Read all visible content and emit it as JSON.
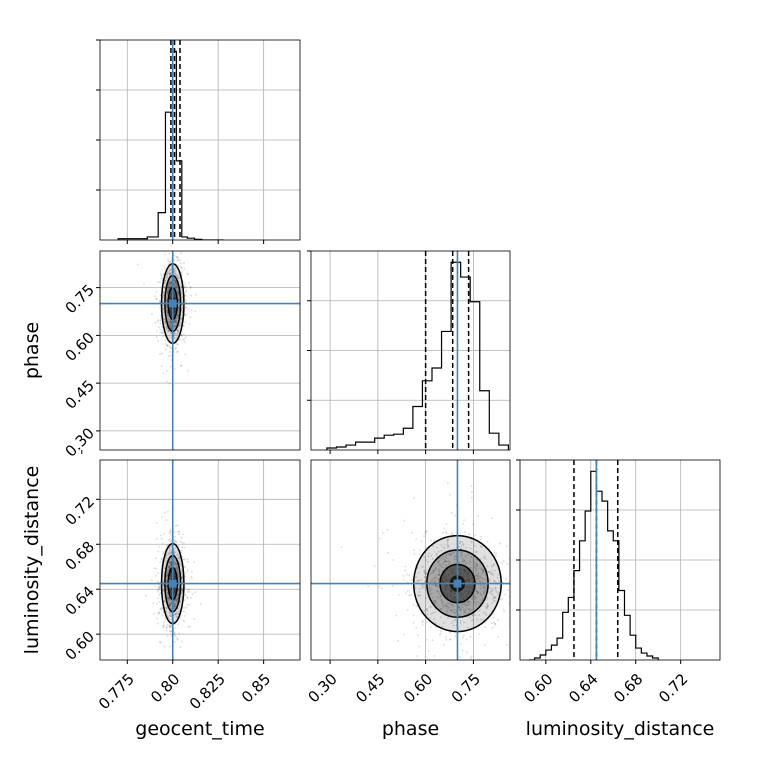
{
  "chart_data": [
    {
      "panel": "geocent_time 1D",
      "type": "histogram",
      "grid": true,
      "xlim": [
        0.76,
        0.87
      ],
      "xticks": [
        0.775,
        0.8,
        0.825,
        0.85
      ],
      "truth": 0.8,
      "quantiles": [
        0.799,
        0.801,
        0.804
      ],
      "bin_edges": [
        0.77,
        0.786,
        0.792,
        0.796,
        0.8,
        0.802,
        0.805,
        0.808,
        0.812,
        0.816,
        0.822,
        0.828
      ],
      "counts": [
        2,
        5,
        45,
        210,
        310,
        130,
        5,
        3,
        1,
        0,
        0
      ]
    },
    {
      "panel": "geocent_time vs phase",
      "type": "scatter",
      "grid": true,
      "xlim": [
        0.76,
        0.87
      ],
      "ylim": [
        0.24,
        0.865
      ],
      "yticks": [
        0.3,
        0.45,
        0.6,
        0.75
      ],
      "ylabel": "phase",
      "truth": [
        0.8,
        0.7
      ],
      "density_center": [
        0.8,
        0.7
      ]
    },
    {
      "panel": "phase 1D",
      "type": "histogram",
      "grid": true,
      "xlim": [
        0.24,
        0.865
      ],
      "truth": 0.7,
      "quantiles": [
        0.6,
        0.685,
        0.735
      ],
      "bin_edges": [
        0.29,
        0.32,
        0.35,
        0.38,
        0.41,
        0.44,
        0.47,
        0.5,
        0.53,
        0.56,
        0.59,
        0.62,
        0.65,
        0.68,
        0.71,
        0.74,
        0.77,
        0.8,
        0.83,
        0.86
      ],
      "counts": [
        2,
        3,
        5,
        8,
        8,
        12,
        15,
        16,
        22,
        44,
        70,
        83,
        120,
        190,
        175,
        150,
        60,
        17,
        5
      ]
    },
    {
      "panel": "geocent_time vs luminosity_distance",
      "type": "scatter",
      "grid": true,
      "xlim": [
        0.76,
        0.87
      ],
      "ylim": [
        0.577,
        0.755
      ],
      "xticks": [
        0.775,
        0.8,
        0.825,
        0.85
      ],
      "yticks": [
        0.6,
        0.64,
        0.68,
        0.72
      ],
      "xlabel": "geocent_time",
      "ylabel": "luminosity_distance",
      "truth": [
        0.8,
        0.645
      ],
      "density_center": [
        0.8,
        0.645
      ]
    },
    {
      "panel": "phase vs luminosity_distance",
      "type": "scatter",
      "grid": true,
      "xlim": [
        0.24,
        0.865
      ],
      "ylim": [
        0.577,
        0.755
      ],
      "xticks": [
        0.3,
        0.45,
        0.6,
        0.75
      ],
      "xlabel": "phase",
      "truth": [
        0.7,
        0.645
      ],
      "density_center": [
        0.7,
        0.645
      ]
    },
    {
      "panel": "luminosity_distance 1D",
      "type": "histogram",
      "grid": true,
      "xlim": [
        0.577,
        0.755
      ],
      "xticks": [
        0.6,
        0.64,
        0.68,
        0.72
      ],
      "xlabel": "luminosity_distance",
      "truth": 0.645,
      "quantiles": [
        0.625,
        0.645,
        0.664
      ],
      "bin_edges": [
        0.585,
        0.59,
        0.595,
        0.6,
        0.605,
        0.61,
        0.615,
        0.62,
        0.625,
        0.63,
        0.635,
        0.64,
        0.645,
        0.65,
        0.655,
        0.66,
        0.665,
        0.67,
        0.675,
        0.68,
        0.685,
        0.69,
        0.695,
        0.7
      ],
      "counts": [
        0,
        2,
        5,
        10,
        15,
        22,
        48,
        63,
        90,
        120,
        150,
        190,
        170,
        160,
        130,
        120,
        70,
        45,
        25,
        12,
        7,
        4,
        2
      ]
    }
  ]
}
